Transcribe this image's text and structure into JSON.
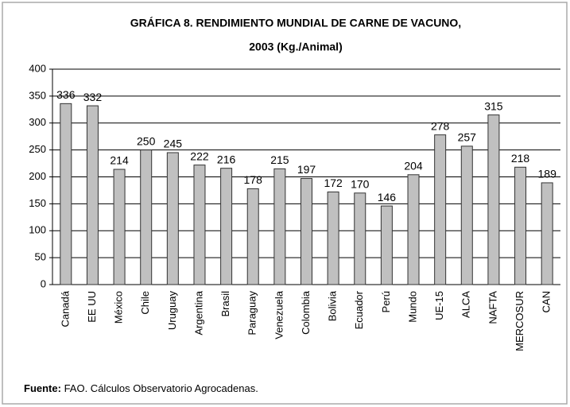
{
  "chart_data": {
    "type": "bar",
    "title": "GRÁFICA 8. RENDIMIENTO MUNDIAL DE CARNE DE VACUNO,",
    "subtitle": "2003 (Kg./Animal)",
    "categories": [
      "Canadá",
      "EE UU",
      "México",
      "Chile",
      "Uruguay",
      "Argentina",
      "Brasil",
      "Paraguay",
      "Venezuela",
      "Colombia",
      "Bolivia",
      "Ecuador",
      "Perú",
      "Mundo",
      "UE-15",
      "ALCA",
      "NAFTA",
      "MERCOSUR",
      "CAN"
    ],
    "values": [
      336,
      332,
      214,
      250,
      245,
      222,
      216,
      178,
      215,
      197,
      172,
      170,
      146,
      204,
      278,
      257,
      315,
      218,
      189
    ],
    "color": "#c0c0c0",
    "ylim": [
      0,
      400
    ],
    "yticks": [
      0,
      50,
      100,
      150,
      200,
      250,
      300,
      350,
      400
    ],
    "grid": true,
    "source": {
      "label": "Fuente:",
      "text": "FAO. Cálculos Observatorio Agrocadenas."
    }
  }
}
